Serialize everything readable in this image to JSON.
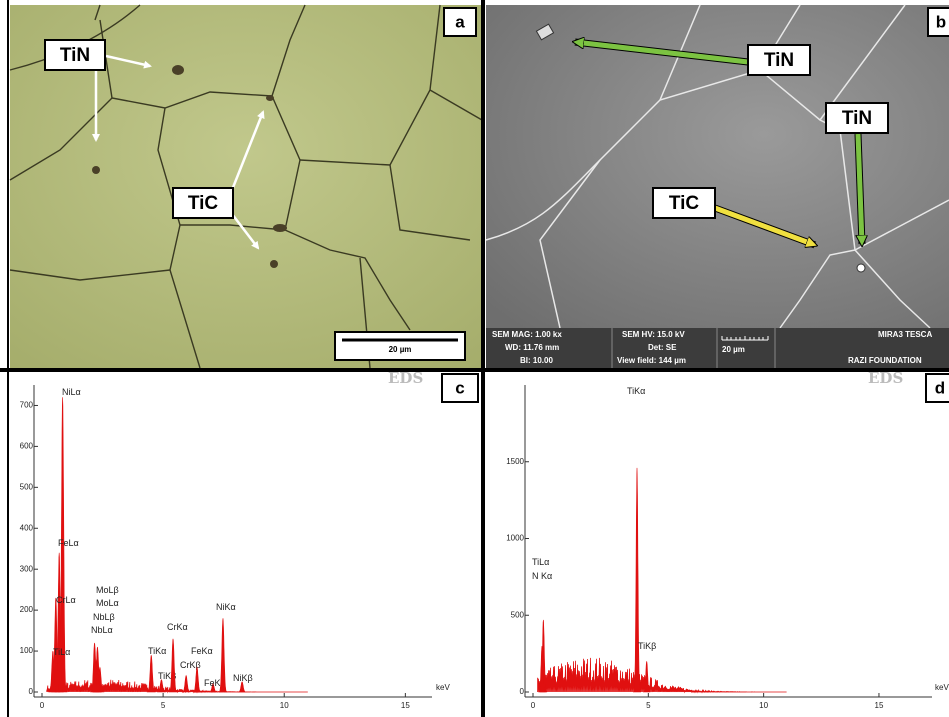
{
  "panels": {
    "a": {
      "letter": "a",
      "labels": [
        "TiN",
        "TiC"
      ],
      "scale_bar": "20 µm"
    },
    "b": {
      "letter": "b",
      "labels": [
        "TiN",
        "TiN",
        "TiC"
      ],
      "info": [
        "SEM MAG: 1.00 kx",
        "WD: 11.76 mm",
        "BI: 10.00",
        "SEM HV: 15.0 kV",
        "Det: SE",
        "View field: 144 µm"
      ],
      "scale_bar": "20 µm",
      "brand": "MIRA3 TESCA",
      "foundation": "RAZI FOUNDATION"
    },
    "c": {
      "letter": "c",
      "watermark": "EDS",
      "unit": "keV",
      "xlim": [
        0,
        16.1
      ],
      "xticks": [
        0,
        5,
        10,
        15
      ],
      "ylim": [
        0,
        750
      ],
      "yticks": [
        0,
        100,
        200,
        300,
        400,
        500,
        600,
        700
      ],
      "peaks": [
        {
          "label": "NiLα",
          "kev": 0.85,
          "counts": 720
        },
        {
          "label": "FeLα",
          "kev": 0.71,
          "counts": 340
        },
        {
          "label": "CrLα",
          "kev": 0.57,
          "counts": 230
        },
        {
          "label": "TiLα",
          "kev": 0.45,
          "counts": 100
        },
        {
          "label": "MoLβ",
          "kev": 2.39,
          "counts": 60
        },
        {
          "label": "MoLα",
          "kev": 2.29,
          "counts": 110
        },
        {
          "label": "NbLβ",
          "kev": 2.26,
          "counts": 80
        },
        {
          "label": "NbLα",
          "kev": 2.17,
          "counts": 120
        },
        {
          "label": "TiKα",
          "kev": 4.51,
          "counts": 90
        },
        {
          "label": "TiKβ",
          "kev": 4.93,
          "counts": 30
        },
        {
          "label": "CrKα",
          "kev": 5.41,
          "counts": 130
        },
        {
          "label": "CrKβ",
          "kev": 5.95,
          "counts": 40
        },
        {
          "label": "FeKα",
          "kev": 6.4,
          "counts": 60
        },
        {
          "label": "FeKβ",
          "kev": 7.06,
          "counts": 20
        },
        {
          "label": "NiKα",
          "kev": 7.47,
          "counts": 180
        },
        {
          "label": "NiKβ",
          "kev": 8.26,
          "counts": 25
        }
      ]
    },
    "d": {
      "letter": "d",
      "watermark": "EDS",
      "unit": "keV",
      "xlim": [
        0,
        17.3
      ],
      "xticks": [
        0,
        5,
        10,
        15
      ],
      "ylim": [
        0,
        2000
      ],
      "yticks": [
        0,
        500,
        1000,
        1500
      ],
      "peaks": [
        {
          "label": "TiKα",
          "kev": 4.51,
          "counts": 1460
        },
        {
          "label": "TiLα",
          "kev": 0.45,
          "counts": 470
        },
        {
          "label": "N Kα",
          "kev": 0.39,
          "counts": 300
        },
        {
          "label": "TiKβ",
          "kev": 4.93,
          "counts": 200
        }
      ]
    }
  }
}
